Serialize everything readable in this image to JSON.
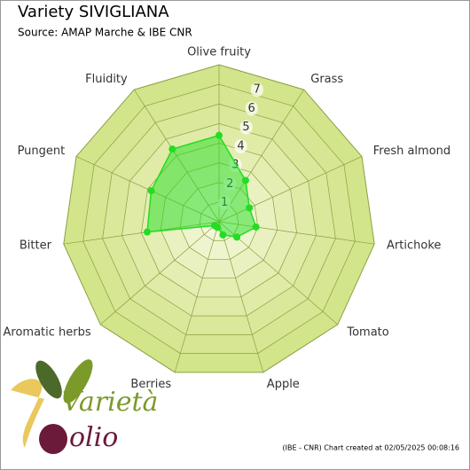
{
  "chart_data": {
    "type": "radar",
    "title": "Variety SIVIGLIANA",
    "subtitle": "Source: AMAP Marche & IBE CNR",
    "categories": [
      "Olive fruity",
      "Grass",
      "Fresh almond",
      "Artichoke",
      "Tomato",
      "Apple",
      "Berries",
      "Aromatic herbs",
      "Bitter",
      "Pungent",
      "Fluidity"
    ],
    "series": [
      {
        "name": "SIVIGLIANA",
        "color": "#22dd22",
        "values": [
          4.4,
          2.5,
          1.7,
          1.9,
          1.2,
          0.7,
          0.3,
          0.3,
          3.7,
          3.8,
          4.4
        ]
      }
    ],
    "ylim": [
      0,
      8
    ],
    "yticks": [
      1,
      2,
      3,
      4,
      5,
      6,
      7
    ],
    "grid": true,
    "footer": "(IBE - CNR) Chart created at 02/05/2025 00:08:16",
    "logo": {
      "word1": "Varietà",
      "word2": "olio"
    }
  }
}
